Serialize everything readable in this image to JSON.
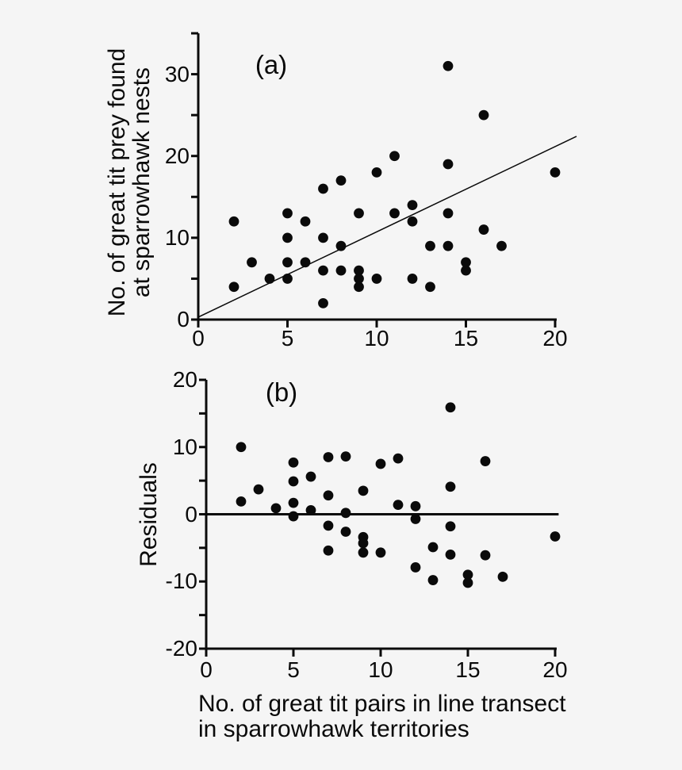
{
  "figure": {
    "background": "#f5f5f5",
    "ink": "#0a0a0a"
  },
  "shared": {
    "xlabel_lines": [
      "No. of great tit pairs in line transect",
      "in sparrowhawk territories"
    ]
  },
  "chart_data": [
    {
      "id": "a",
      "type": "scatter",
      "panel_label": "(a)",
      "ylabel_lines": [
        "No. of great tit prey found",
        "at sparrowhawk nests"
      ],
      "xlabel": "No. of great tit pairs in line transect in sparrowhawk territories",
      "xlim": [
        0,
        20
      ],
      "ylim": [
        0,
        35
      ],
      "xticks": [
        0,
        5,
        10,
        15,
        20
      ],
      "ytick_labels": [
        0,
        10,
        20,
        30
      ],
      "ytick_minor": [
        5,
        15,
        25,
        35
      ],
      "grid": false,
      "points": [
        [
          2,
          12
        ],
        [
          2,
          4
        ],
        [
          3,
          7
        ],
        [
          4,
          5
        ],
        [
          5,
          13
        ],
        [
          5,
          10
        ],
        [
          5,
          7
        ],
        [
          5,
          5
        ],
        [
          6,
          12
        ],
        [
          6,
          7
        ],
        [
          7,
          16
        ],
        [
          7,
          10
        ],
        [
          7,
          6
        ],
        [
          7,
          2
        ],
        [
          8,
          17
        ],
        [
          8,
          9
        ],
        [
          8,
          6
        ],
        [
          9,
          13
        ],
        [
          9,
          6
        ],
        [
          9,
          5
        ],
        [
          9,
          4
        ],
        [
          10,
          18
        ],
        [
          10,
          5
        ],
        [
          11,
          20
        ],
        [
          11,
          13
        ],
        [
          12,
          14
        ],
        [
          12,
          12
        ],
        [
          12,
          5
        ],
        [
          13,
          9
        ],
        [
          13,
          4
        ],
        [
          14,
          31
        ],
        [
          14,
          19
        ],
        [
          14,
          13
        ],
        [
          14,
          9
        ],
        [
          15,
          7
        ],
        [
          15,
          6
        ],
        [
          16,
          25
        ],
        [
          16,
          11
        ],
        [
          17,
          9
        ],
        [
          20,
          18
        ]
      ],
      "regression_line": {
        "x1": 0,
        "y1": 0.3,
        "x2": 21.2,
        "y2": 22.4
      }
    },
    {
      "id": "b",
      "type": "scatter",
      "panel_label": "(b)",
      "ylabel": "Residuals",
      "xlabel": "No. of great tit pairs in line transect in sparrowhawk territories",
      "xlim": [
        0,
        20
      ],
      "ylim": [
        -20,
        20
      ],
      "xticks": [
        0,
        5,
        10,
        15,
        20
      ],
      "ytick_labels": [
        -20,
        -10,
        0,
        10,
        20
      ],
      "ytick_minor": [
        -15,
        -5,
        5,
        15
      ],
      "grid": false,
      "points": [
        [
          2,
          10
        ],
        [
          2,
          1.9
        ],
        [
          3,
          3.7
        ],
        [
          4,
          0.9
        ],
        [
          5,
          7.7
        ],
        [
          5,
          4.9
        ],
        [
          5,
          1.7
        ],
        [
          5,
          -0.3
        ],
        [
          6,
          5.6
        ],
        [
          6,
          0.6
        ],
        [
          7,
          8.5
        ],
        [
          7,
          2.8
        ],
        [
          7,
          -1.7
        ],
        [
          7,
          -5.4
        ],
        [
          8,
          8.6
        ],
        [
          8,
          0.2
        ],
        [
          8,
          -2.6
        ],
        [
          9,
          3.5
        ],
        [
          9,
          -3.4
        ],
        [
          9,
          -4.3
        ],
        [
          9,
          -5.7
        ],
        [
          10,
          7.5
        ],
        [
          10,
          -5.7
        ],
        [
          11,
          8.3
        ],
        [
          11,
          1.4
        ],
        [
          12,
          1.2
        ],
        [
          12,
          -0.7
        ],
        [
          12,
          -7.9
        ],
        [
          13,
          -4.9
        ],
        [
          13,
          -9.8
        ],
        [
          14,
          15.9
        ],
        [
          14,
          4.1
        ],
        [
          14,
          -1.8
        ],
        [
          14,
          -6.0
        ],
        [
          15,
          -9.0
        ],
        [
          15,
          -10.2
        ],
        [
          16,
          7.9
        ],
        [
          16,
          -6.1
        ],
        [
          17,
          -9.3
        ],
        [
          20,
          -3.3
        ]
      ],
      "zero_line": {
        "y": 0,
        "x_end": 20.2
      }
    }
  ]
}
